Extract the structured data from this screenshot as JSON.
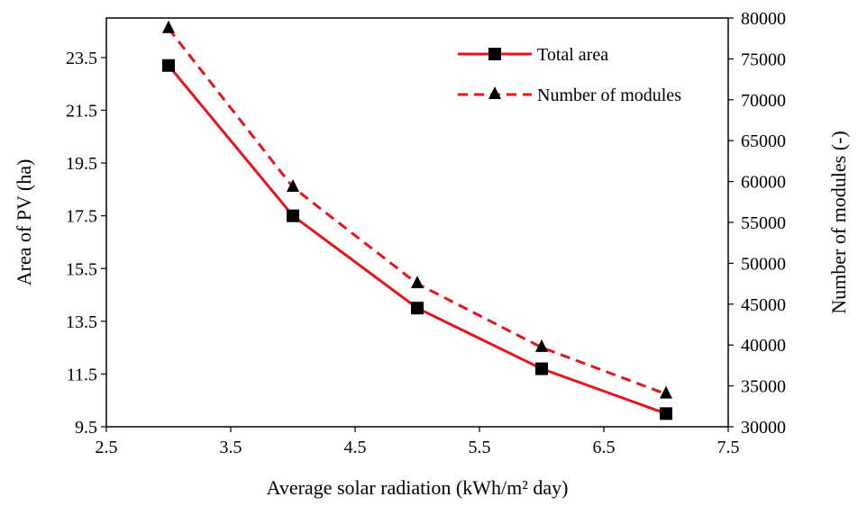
{
  "chart_data": {
    "type": "line",
    "x": [
      3,
      4,
      5,
      6,
      7
    ],
    "xlabel": "Average solar radiation (kWh/m² day)",
    "ylabel": "Area of PV (ha)",
    "y2label": "Number of modules (-)",
    "xlim": [
      2.5,
      7.5
    ],
    "ylim": [
      9.5,
      25
    ],
    "y2lim": [
      30000,
      80000
    ],
    "x_ticks": [
      "2.5",
      "3.5",
      "4.5",
      "5.5",
      "6.5",
      "7.5"
    ],
    "y_ticks": [
      "9.5",
      "11.5",
      "13.5",
      "15.5",
      "17.5",
      "19.5",
      "21.5",
      "23.5"
    ],
    "y2_ticks": [
      "30000",
      "35000",
      "40000",
      "45000",
      "50000",
      "55000",
      "60000",
      "65000",
      "70000",
      "75000",
      "80000"
    ],
    "grid": false,
    "legend_position": "top-right",
    "series": [
      {
        "name": "Total area",
        "axis": "left",
        "values": [
          23.2,
          17.5,
          14.0,
          11.7,
          10.0
        ],
        "color": "#e8141b",
        "dash": "solid",
        "marker": "square"
      },
      {
        "name": "Number of modules",
        "axis": "right",
        "values": [
          78700,
          59300,
          47500,
          39700,
          34000
        ],
        "color": "#e8141b",
        "dash": "dashed",
        "marker": "triangle"
      }
    ]
  }
}
